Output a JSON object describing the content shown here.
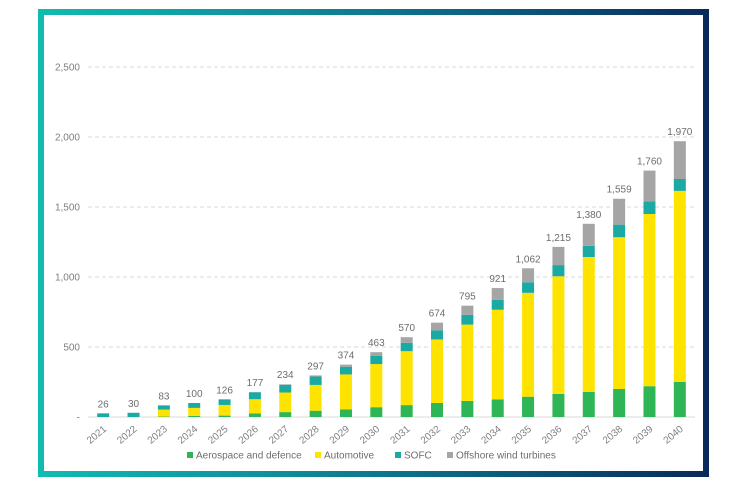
{
  "chart_data": {
    "type": "bar",
    "stacked": true,
    "title": "",
    "xlabel": "",
    "ylabel": "",
    "ylim": [
      0,
      2500
    ],
    "yticks": [
      0,
      500,
      1000,
      1500,
      2000,
      2500
    ],
    "ytick_labels": [
      "-",
      "500",
      "1,000",
      "1,500",
      "2,000",
      "2,500"
    ],
    "grid": "horizontal-dashed",
    "legend_position": "bottom-center",
    "categories": [
      "2021",
      "2022",
      "2023",
      "2024",
      "2025",
      "2026",
      "2027",
      "2028",
      "2029",
      "2030",
      "2031",
      "2032",
      "2033",
      "2034",
      "2035",
      "2036",
      "2037",
      "2038",
      "2039",
      "2040"
    ],
    "series": [
      {
        "name": "Aerospace and defence",
        "color": "#2db556",
        "values": [
          0,
          0,
          3,
          7,
          10,
          25,
          35,
          45,
          55,
          70,
          85,
          100,
          115,
          125,
          145,
          165,
          180,
          200,
          220,
          250
        ]
      },
      {
        "name": "Automotive",
        "color": "#ffe300",
        "values": [
          0,
          0,
          50,
          58,
          76,
          102,
          140,
          184,
          249,
          308,
          385,
          454,
          545,
          641,
          742,
          840,
          963,
          1084,
          1230,
          1365
        ]
      },
      {
        "name": "SOFC",
        "color": "#1aa9a3",
        "values": [
          26,
          30,
          30,
          35,
          40,
          50,
          55,
          60,
          55,
          60,
          60,
          65,
          70,
          70,
          75,
          80,
          80,
          90,
          90,
          85
        ]
      },
      {
        "name": "Offshore wind turbines",
        "color": "#a5a5a5",
        "values": [
          0,
          0,
          0,
          0,
          0,
          0,
          4,
          8,
          15,
          25,
          40,
          55,
          65,
          85,
          100,
          130,
          157,
          185,
          220,
          270
        ]
      }
    ],
    "totals": [
      26,
      30,
      83,
      100,
      126,
      177,
      234,
      297,
      374,
      463,
      570,
      674,
      795,
      921,
      1062,
      1215,
      1380,
      1559,
      1760,
      1970
    ],
    "total_labels": [
      "26",
      "30",
      "83",
      "100",
      "126",
      "177",
      "234",
      "297",
      "374",
      "463",
      "570",
      "674",
      "795",
      "921",
      "1,062",
      "1,215",
      "1,380",
      "1,559",
      "1,760",
      "1,970"
    ]
  },
  "colors": {
    "frame_gradient_start": "#10bcb0",
    "frame_gradient_end": "#0a2a5a",
    "gridline": "#d9d9d9",
    "text": "#7f7f7f"
  }
}
